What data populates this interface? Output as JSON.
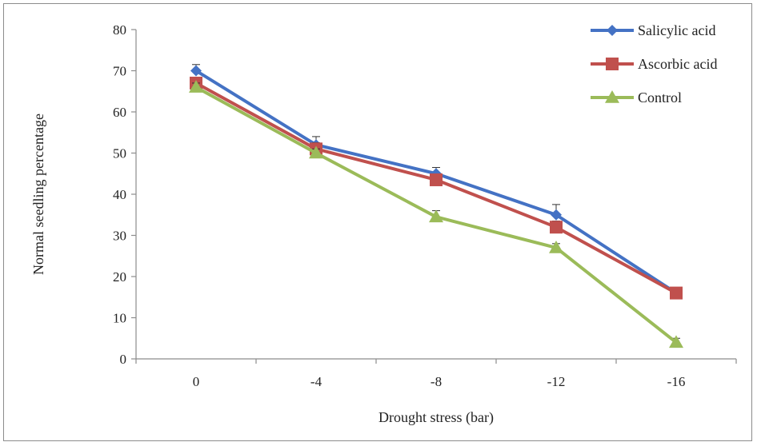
{
  "chart_data": {
    "type": "line",
    "categories": [
      "0",
      "-4",
      "-8",
      "-12",
      "-16"
    ],
    "series": [
      {
        "name": "Salicylic acid",
        "values": [
          70,
          52,
          45,
          35,
          16
        ],
        "errors": [
          1.5,
          2,
          1.5,
          2.5,
          1
        ],
        "color": "#4472C4",
        "marker": "diamond"
      },
      {
        "name": "Ascorbic acid",
        "values": [
          67,
          51,
          43.5,
          32,
          16
        ],
        "errors": [
          1,
          1.5,
          1,
          1.5,
          1
        ],
        "color": "#C0504D",
        "marker": "square"
      },
      {
        "name": "Control",
        "values": [
          66,
          50,
          34.5,
          27,
          4
        ],
        "errors": [
          1,
          1,
          1.5,
          1,
          1
        ],
        "color": "#9BBB59",
        "marker": "triangle"
      }
    ],
    "xlabel": "Drought stress (bar)",
    "ylabel": "Normal  seedling percentage",
    "ylim": [
      0,
      80
    ],
    "yticks": [
      0,
      10,
      20,
      30,
      40,
      50,
      60,
      70,
      80
    ],
    "grid": false,
    "legend_position": "top-right"
  }
}
